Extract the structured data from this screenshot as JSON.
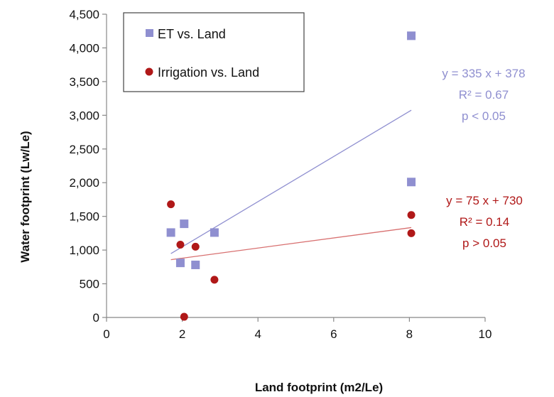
{
  "chart_data": {
    "type": "scatter",
    "title": "",
    "xlabel": "Land footprint (m2/Le)",
    "ylabel": "Water footprint (Lw/Le)",
    "xlim": [
      0,
      10
    ],
    "ylim": [
      0,
      4500
    ],
    "x_ticks": [
      0,
      2,
      4,
      6,
      8,
      10
    ],
    "y_ticks": [
      0,
      500,
      1000,
      1500,
      2000,
      2500,
      3000,
      3500,
      4000,
      4500
    ],
    "x_tick_labels": [
      "0",
      "2",
      "4",
      "6",
      "8",
      "10"
    ],
    "y_tick_labels": [
      "0",
      "500",
      "1,000",
      "1,500",
      "2,000",
      "2,500",
      "3,000",
      "3,500",
      "4,000",
      "4,500"
    ],
    "grid": false,
    "legend_position": "top-left",
    "series": [
      {
        "name": "ET vs. Land",
        "marker": "square",
        "color": "#8f8fd0",
        "points": [
          [
            1.7,
            1260
          ],
          [
            1.95,
            810
          ],
          [
            2.05,
            1390
          ],
          [
            2.35,
            780
          ],
          [
            2.85,
            1260
          ],
          [
            8.05,
            4180
          ],
          [
            8.05,
            2010
          ]
        ],
        "trendline": {
          "slope": 335,
          "intercept": 378,
          "x_range": [
            1.7,
            8.05
          ]
        },
        "annotation": {
          "equation": "y = 335 x + 378",
          "r2": "R² = 0.67",
          "p": "p < 0.05"
        }
      },
      {
        "name": "Irrigation vs. Land",
        "marker": "circle",
        "color": "#b01818",
        "line_color": "#d87070",
        "points": [
          [
            1.7,
            1680
          ],
          [
            1.95,
            1080
          ],
          [
            2.05,
            10
          ],
          [
            2.35,
            1050
          ],
          [
            2.85,
            560
          ],
          [
            8.05,
            1520
          ],
          [
            8.05,
            1250
          ]
        ],
        "trendline": {
          "slope": 75,
          "intercept": 730,
          "x_range": [
            1.7,
            8.05
          ]
        },
        "annotation": {
          "equation": "y = 75 x + 730",
          "r2": "R² = 0.14",
          "p": "p > 0.05"
        }
      }
    ]
  }
}
